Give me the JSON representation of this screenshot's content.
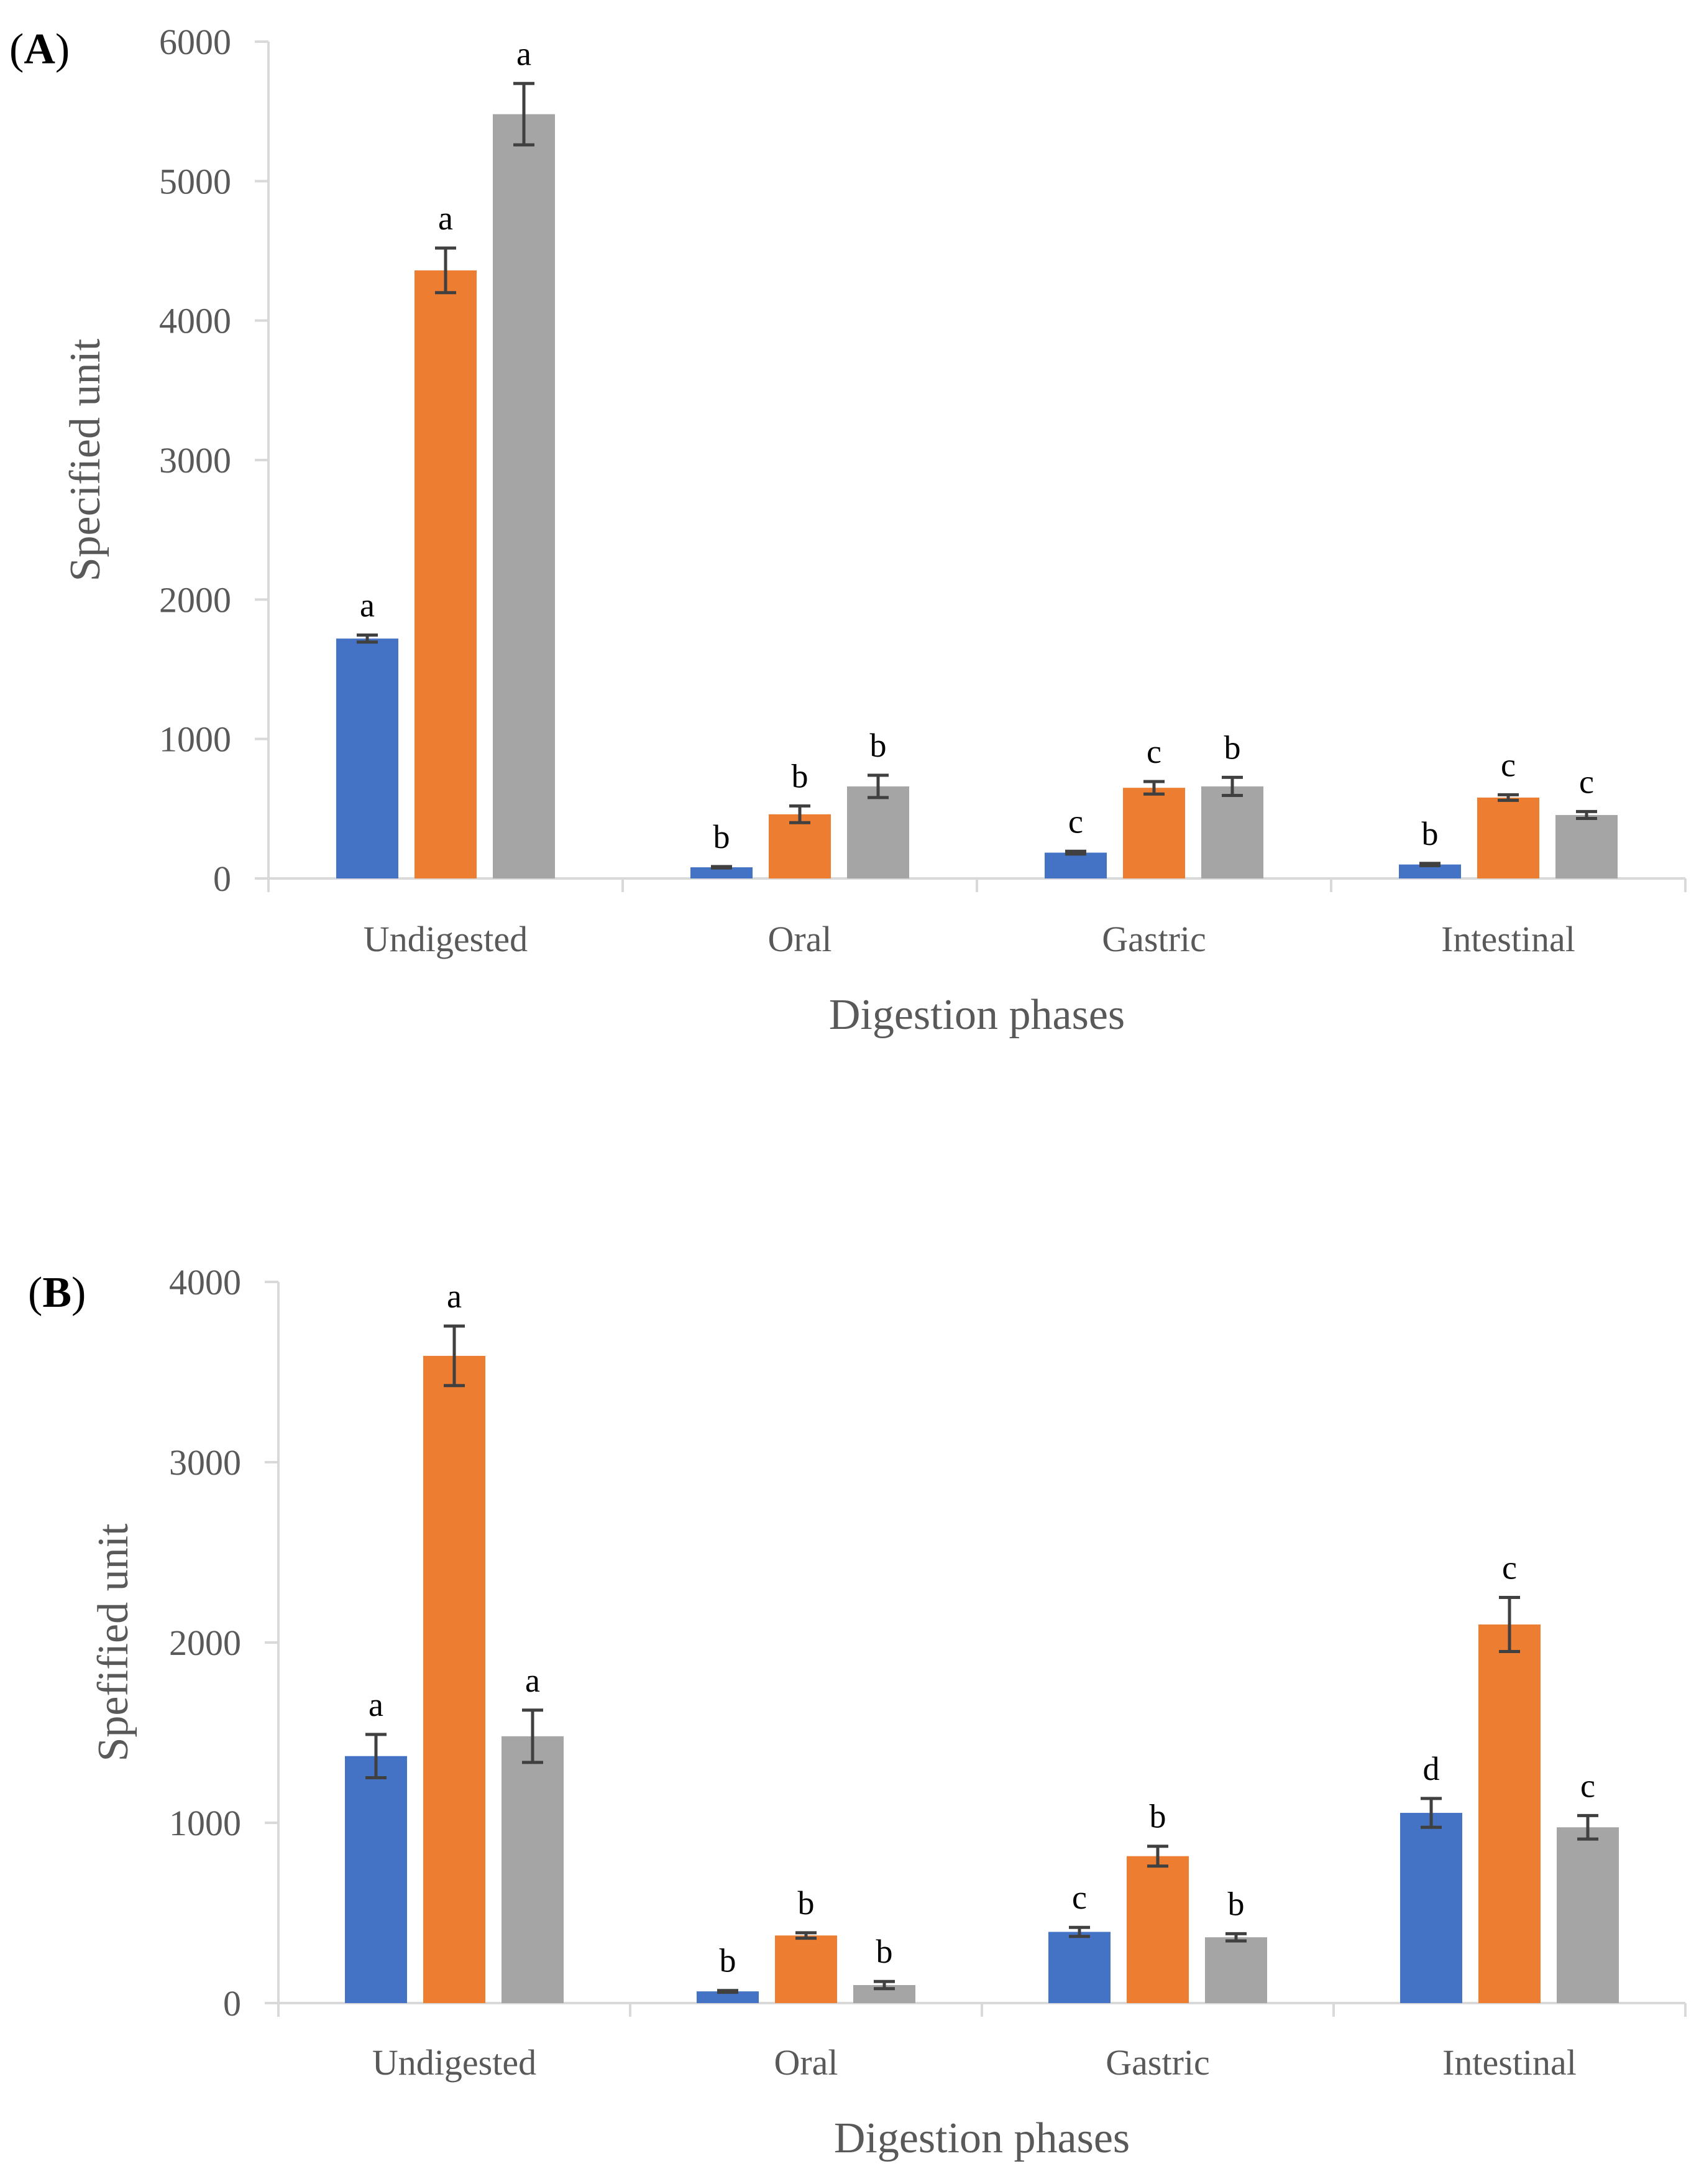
{
  "colors": {
    "series": [
      "#4472C4",
      "#ED7D31",
      "#A5A5A5"
    ],
    "axis": "#D9D9D9",
    "error_bar": "#404040",
    "tick_text": "#595959"
  },
  "chart_data": [
    {
      "type": "bar",
      "panel_label": "A",
      "categories": [
        "Undigested",
        "Oral",
        "Gastric",
        "Intestinal"
      ],
      "xlabel": "Digestion phases",
      "ylabel": "Specified unit",
      "ylim": [
        0,
        6000
      ],
      "yticks": [
        "0",
        "1000",
        "2000",
        "3000",
        "4000",
        "5000",
        "6000"
      ],
      "grid": false,
      "legend": "none",
      "series": [
        {
          "values": [
            1720,
            80,
            185,
            100
          ],
          "errors": [
            25,
            5,
            10,
            8
          ],
          "letters": [
            "a",
            "b",
            "c",
            "b"
          ]
        },
        {
          "values": [
            4360,
            460,
            650,
            580
          ],
          "errors": [
            160,
            60,
            45,
            20
          ],
          "letters": [
            "a",
            "b",
            "c",
            "c"
          ]
        },
        {
          "values": [
            5480,
            660,
            660,
            455
          ],
          "errors": [
            220,
            80,
            65,
            25
          ],
          "letters": [
            "a",
            "b",
            "b",
            "c"
          ]
        }
      ]
    },
    {
      "type": "bar",
      "panel_label": "B",
      "categories": [
        "Undigested",
        "Oral",
        "Gastric",
        "Intestinal"
      ],
      "xlabel": "Digestion phases",
      "ylabel": "Spefified unit",
      "ylim": [
        0,
        4000
      ],
      "yticks": [
        "0",
        "1000",
        "2000",
        "3000",
        "4000"
      ],
      "grid": false,
      "legend": "none",
      "series": [
        {
          "values": [
            1370,
            65,
            395,
            1055
          ],
          "errors": [
            120,
            5,
            25,
            80
          ],
          "letters": [
            "a",
            "b",
            "c",
            "d"
          ]
        },
        {
          "values": [
            3590,
            375,
            815,
            2100
          ],
          "errors": [
            165,
            15,
            55,
            150
          ],
          "letters": [
            "a",
            "b",
            "b",
            "c"
          ]
        },
        {
          "values": [
            1480,
            100,
            365,
            975
          ],
          "errors": [
            145,
            20,
            20,
            65
          ],
          "letters": [
            "a",
            "b",
            "b",
            "c"
          ]
        }
      ]
    }
  ]
}
